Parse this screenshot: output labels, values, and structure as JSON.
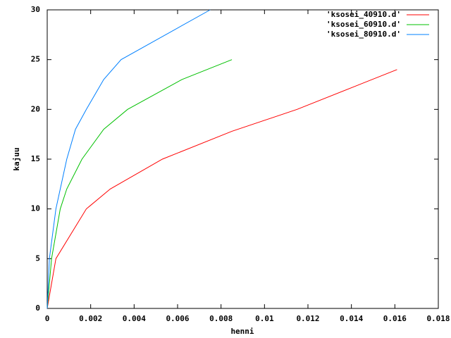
{
  "chart_data": {
    "type": "line",
    "x_label": "henni",
    "y_label": "kajuu",
    "xlim": [
      0,
      0.018
    ],
    "xticks": [
      0,
      0.002,
      0.004,
      0.006,
      0.008,
      0.01,
      0.012,
      0.014,
      0.016,
      0.018
    ],
    "ylim": [
      0,
      30
    ],
    "yticks": [
      0,
      5,
      10,
      15,
      20,
      25,
      30
    ],
    "grid": false,
    "legend": "top-right",
    "series": [
      {
        "name": "'ksosei_40910.d'",
        "color": "#ff0000",
        "x": [
          0,
          0.0004,
          0.0018,
          0.0029,
          0.0053,
          0.0085,
          0.0115,
          0.0161
        ],
        "values": [
          0,
          5,
          10,
          12,
          15,
          17.8,
          20,
          24
        ]
      },
      {
        "name": "'ksosei_60910.d'",
        "color": "#00c000",
        "x": [
          0,
          0.0002,
          0.0006,
          0.0009,
          0.0016,
          0.0026,
          0.0037,
          0.0062,
          0.0085
        ],
        "values": [
          0,
          5,
          10,
          12,
          15,
          18,
          20,
          23,
          25
        ]
      },
      {
        "name": "'ksosei_80910.d'",
        "color": "#0080ff",
        "x": [
          0,
          0.0001,
          0.0004,
          0.0006,
          0.0009,
          0.0013,
          0.0018,
          0.0026,
          0.0034,
          0.0075
        ],
        "values": [
          0,
          5,
          10,
          12,
          15,
          18,
          20,
          23,
          25,
          30
        ]
      }
    ]
  }
}
